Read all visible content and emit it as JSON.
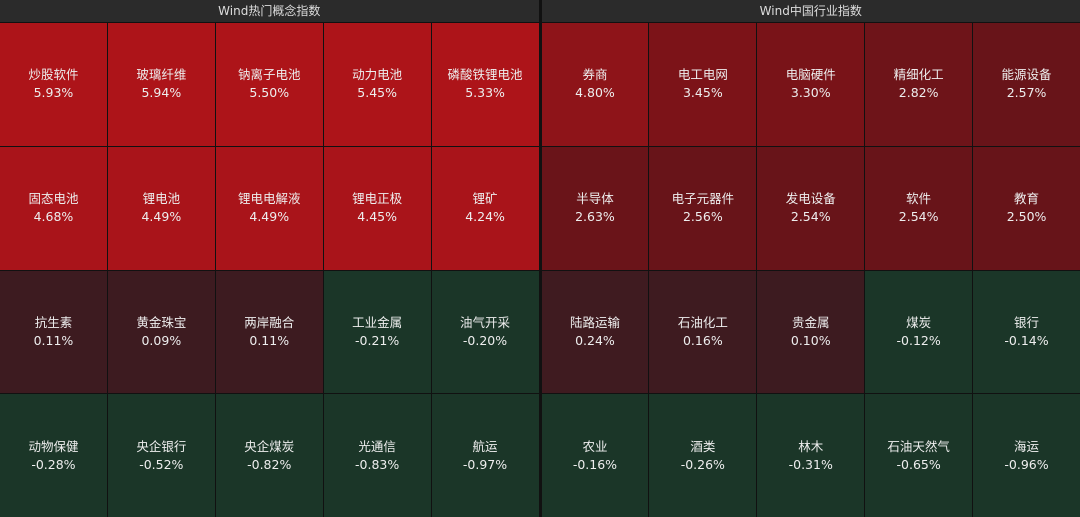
{
  "panels": [
    {
      "title": "Wind热门概念指数",
      "cells": [
        {
          "name": "炒股软件",
          "change": "5.93%",
          "color": "#ad1419"
        },
        {
          "name": "玻璃纤维",
          "change": "5.94%",
          "color": "#ad1419"
        },
        {
          "name": "钠离子电池",
          "change": "5.50%",
          "color": "#ad1419"
        },
        {
          "name": "动力电池",
          "change": "5.45%",
          "color": "#ad1419"
        },
        {
          "name": "磷酸铁锂电池",
          "change": "5.33%",
          "color": "#ad1419"
        },
        {
          "name": "固态电池",
          "change": "4.68%",
          "color": "#a9141a"
        },
        {
          "name": "锂电池",
          "change": "4.49%",
          "color": "#a9141a"
        },
        {
          "name": "锂电电解液",
          "change": "4.49%",
          "color": "#a9141a"
        },
        {
          "name": "锂电正极",
          "change": "4.45%",
          "color": "#a9141a"
        },
        {
          "name": "锂矿",
          "change": "4.24%",
          "color": "#a9141a"
        },
        {
          "name": "抗生素",
          "change": "0.11%",
          "color": "#3d1b20"
        },
        {
          "name": "黄金珠宝",
          "change": "0.09%",
          "color": "#3d1b20"
        },
        {
          "name": "两岸融合",
          "change": "0.11%",
          "color": "#3d1b20"
        },
        {
          "name": "工业金属",
          "change": "-0.21%",
          "color": "#1b3628"
        },
        {
          "name": "油气开采",
          "change": "-0.20%",
          "color": "#1b3628"
        },
        {
          "name": "动物保健",
          "change": "-0.28%",
          "color": "#1b3628"
        },
        {
          "name": "央企银行",
          "change": "-0.52%",
          "color": "#1b3628"
        },
        {
          "name": "央企煤炭",
          "change": "-0.82%",
          "color": "#1b3628"
        },
        {
          "name": "光通信",
          "change": "-0.83%",
          "color": "#1b3628"
        },
        {
          "name": "航运",
          "change": "-0.97%",
          "color": "#1b3628"
        }
      ]
    },
    {
      "title": "Wind中国行业指数",
      "cells": [
        {
          "name": "券商",
          "change": "4.80%",
          "color": "#8e1419"
        },
        {
          "name": "电工电网",
          "change": "3.45%",
          "color": "#7c1318"
        },
        {
          "name": "电脑硬件",
          "change": "3.30%",
          "color": "#791318"
        },
        {
          "name": "精细化工",
          "change": "2.82%",
          "color": "#6e1419"
        },
        {
          "name": "能源设备",
          "change": "2.57%",
          "color": "#681419"
        },
        {
          "name": "半导体",
          "change": "2.63%",
          "color": "#6a1419"
        },
        {
          "name": "电子元器件",
          "change": "2.56%",
          "color": "#681419"
        },
        {
          "name": "发电设备",
          "change": "2.54%",
          "color": "#681419"
        },
        {
          "name": "软件",
          "change": "2.54%",
          "color": "#681419"
        },
        {
          "name": "教育",
          "change": "2.50%",
          "color": "#671419"
        },
        {
          "name": "陆路运输",
          "change": "0.24%",
          "color": "#3f1b20"
        },
        {
          "name": "石油化工",
          "change": "0.16%",
          "color": "#3e1b20"
        },
        {
          "name": "贵金属",
          "change": "0.10%",
          "color": "#3d1b20"
        },
        {
          "name": "煤炭",
          "change": "-0.12%",
          "color": "#1b3628"
        },
        {
          "name": "银行",
          "change": "-0.14%",
          "color": "#1b3628"
        },
        {
          "name": "农业",
          "change": "-0.16%",
          "color": "#1b3628"
        },
        {
          "name": "酒类",
          "change": "-0.26%",
          "color": "#1b3628"
        },
        {
          "name": "林木",
          "change": "-0.31%",
          "color": "#1b3628"
        },
        {
          "name": "石油天然气",
          "change": "-0.65%",
          "color": "#1b3628"
        },
        {
          "name": "海运",
          "change": "-0.96%",
          "color": "#1b3628"
        }
      ]
    }
  ]
}
